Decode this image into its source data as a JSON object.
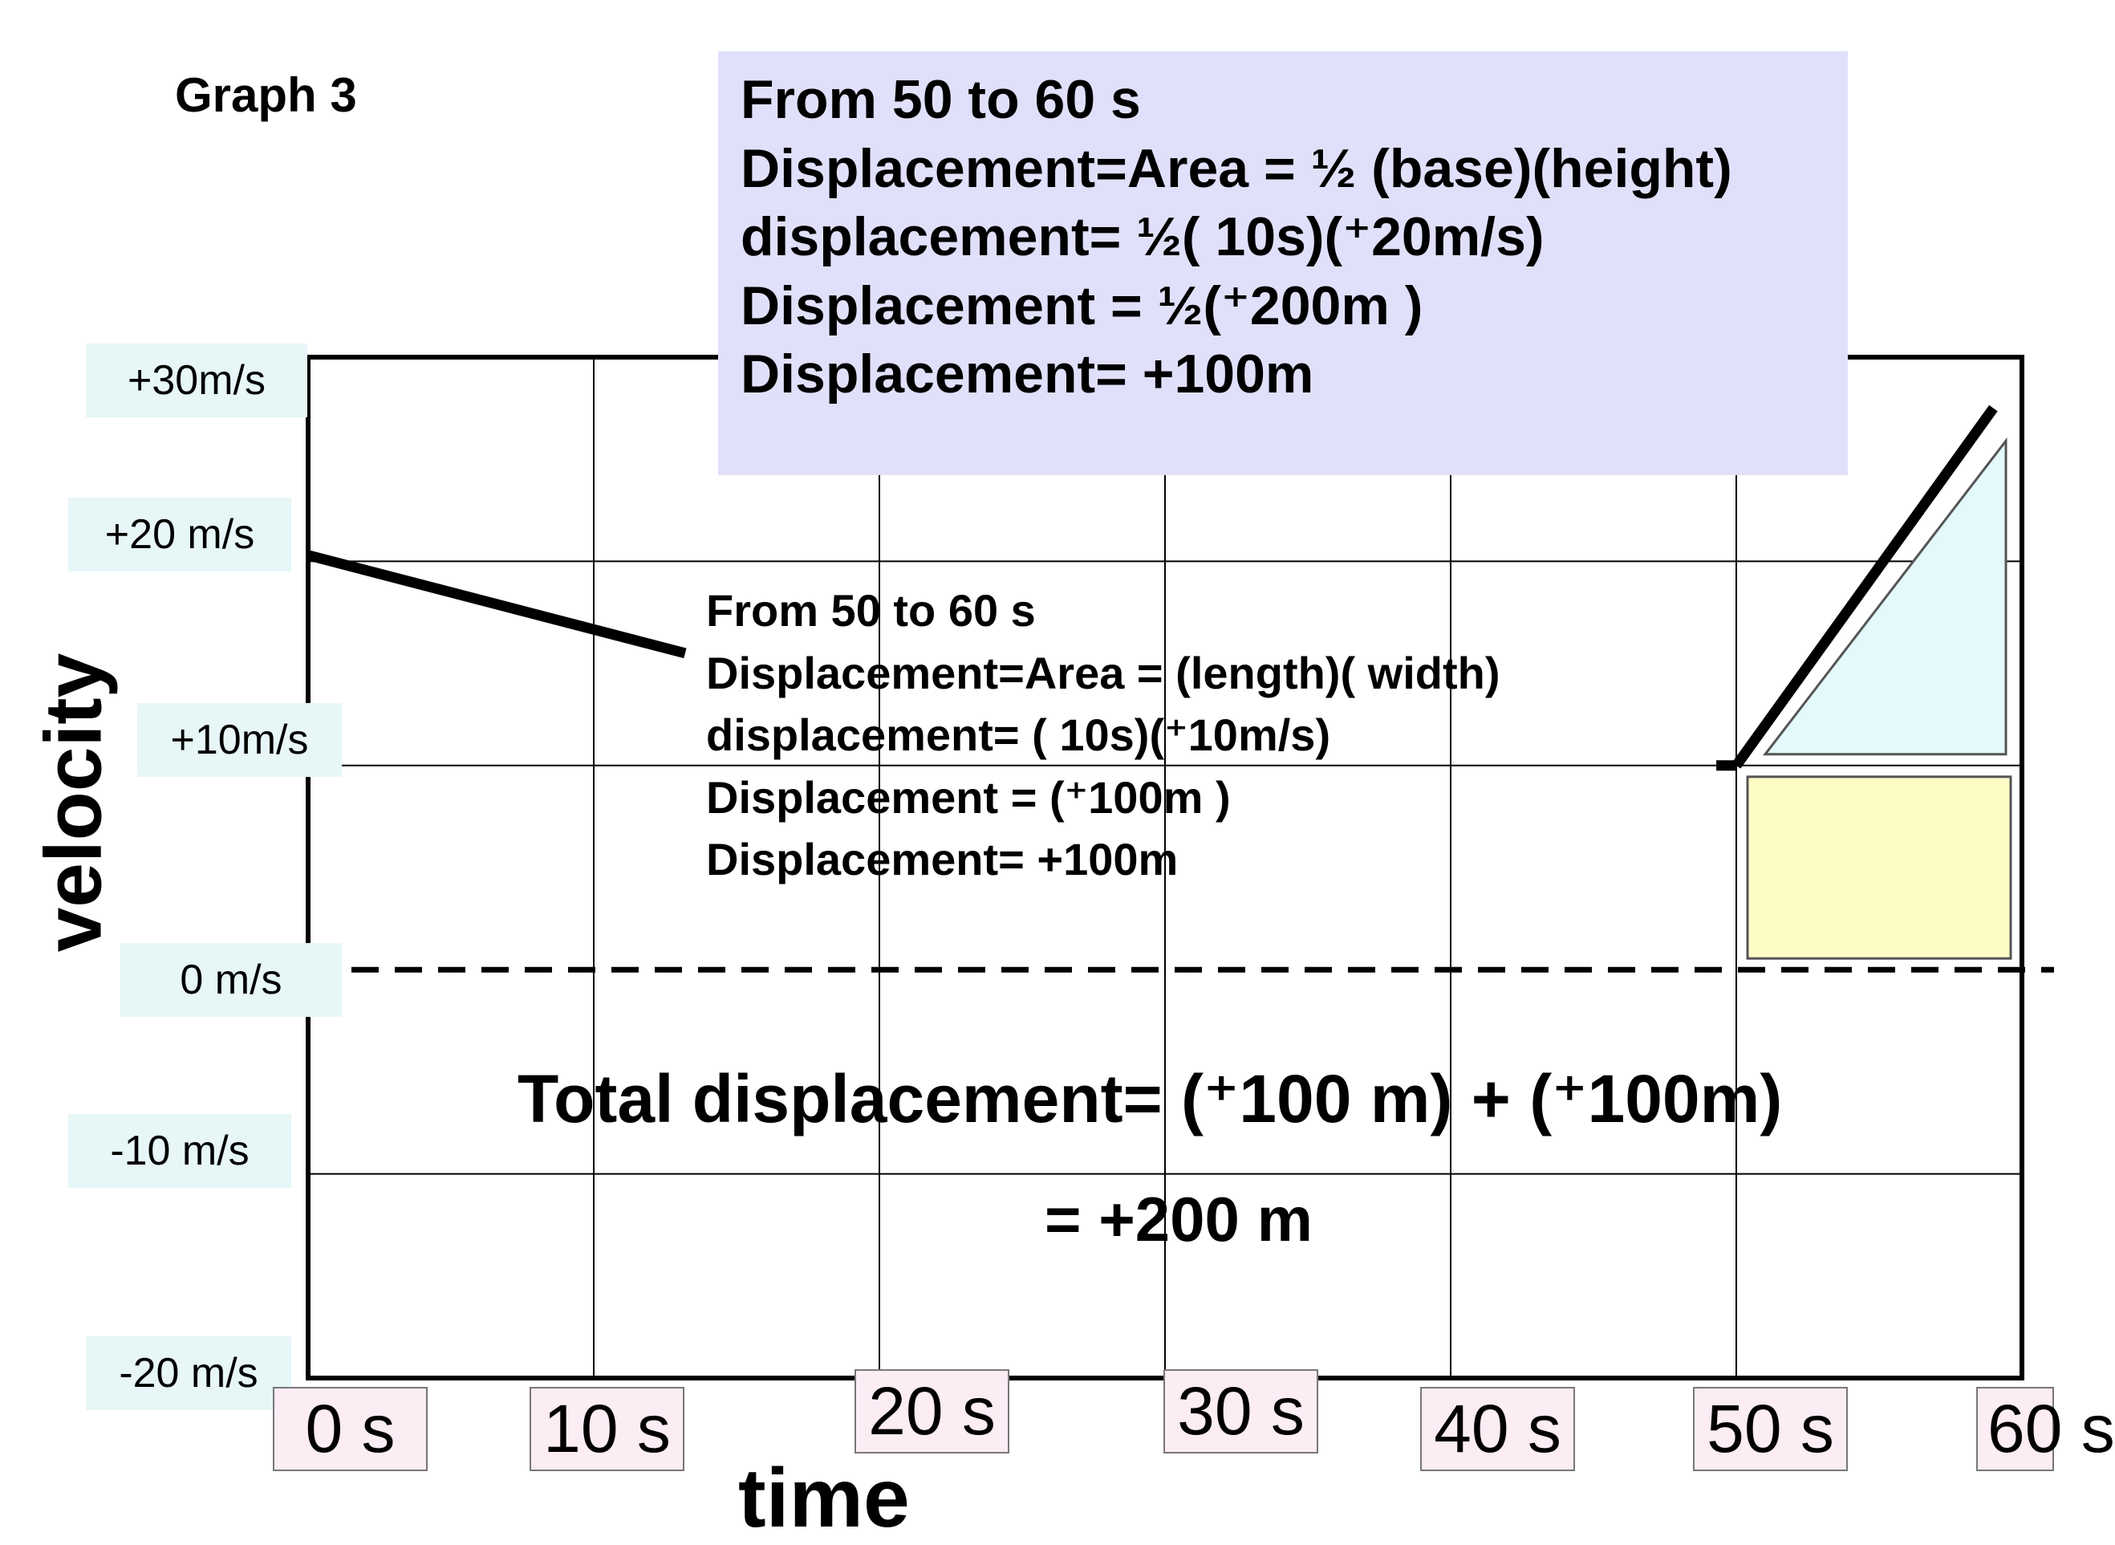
{
  "page": {
    "title": "Graph 3"
  },
  "annotations": {
    "triangle_box": {
      "lines": [
        "From 50 to 60 s",
        "Displacement=Area = ½ (base)(height)",
        "displacement= ½( 10s)(⁺20m/s)",
        "Displacement = ½(⁺200m )",
        "Displacement= +100m"
      ],
      "background": "#e0e0fb"
    },
    "rectangle_note": {
      "lines": [
        "From 50 to 60 s",
        "Displacement=Area = (length)( width)",
        "displacement= ( 10s)(⁺10m/s)",
        "Displacement =  (⁺100m )",
        "Displacement= +100m"
      ]
    },
    "total": {
      "line1": "Total displacement= (⁺100 m) + (⁺100m)",
      "line2": "=  +200 m"
    }
  },
  "chart_data": {
    "type": "line",
    "title": "Graph 3",
    "xlabel": "time",
    "ylabel": "velocity",
    "x_tick_labels": [
      "0 s",
      "10 s",
      "20 s",
      "30 s",
      "40 s",
      "50 s",
      "60 s"
    ],
    "y_tick_labels": [
      "+30m/s",
      "+20 m/s",
      "+10m/s",
      "0 m/s",
      "-10 m/s",
      "-20 m/s"
    ],
    "x_ticks": [
      0,
      10,
      20,
      30,
      40,
      50,
      60
    ],
    "y_ticks": [
      30,
      20,
      10,
      0,
      -10,
      -20
    ],
    "xlim": [
      0,
      60
    ],
    "ylim": [
      -20,
      30
    ],
    "grid": true,
    "zero_line": "dashed",
    "series": [
      {
        "x": [
          0,
          13.2
        ],
        "y": [
          20.3,
          15.5
        ]
      },
      {
        "x": [
          49.3,
          50
        ],
        "y": [
          10,
          10
        ]
      },
      {
        "x": [
          50,
          59
        ],
        "y": [
          10,
          27.5
        ]
      }
    ],
    "shaded_regions": [
      {
        "shape": "triangle",
        "x": [
          50,
          60
        ],
        "y": [
          10,
          27
        ],
        "color": "#e3f9fb"
      },
      {
        "shape": "rectangle",
        "x": [
          50,
          60
        ],
        "y": [
          0,
          10
        ],
        "color": "#fdfbc6"
      }
    ],
    "colors": {
      "triangle": "#e3f9fb",
      "rectangle": "#fdfbc6",
      "note_box": "#e0e0fb"
    }
  }
}
